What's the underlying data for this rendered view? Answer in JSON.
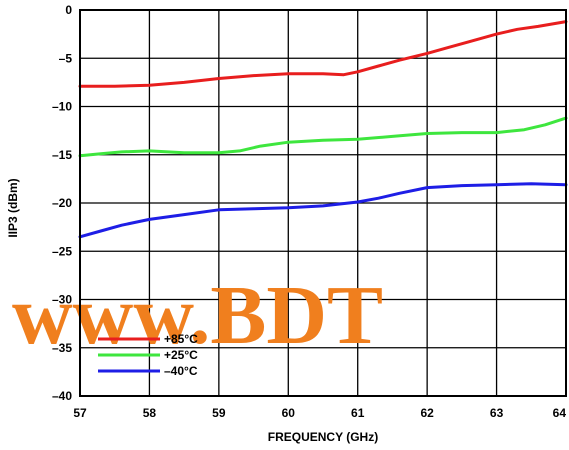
{
  "chart_data": {
    "type": "line",
    "xlabel": "FREQUENCY (GHz)",
    "ylabel": "IIP3 (dBm)",
    "xlim": [
      57,
      64
    ],
    "ylim": [
      -40,
      0
    ],
    "x_ticks": [
      "57",
      "58",
      "59",
      "60",
      "61",
      "62",
      "63",
      "64"
    ],
    "y_ticks": [
      "0",
      "–5",
      "–10",
      "–15",
      "–20",
      "–25",
      "–30",
      "–35",
      "–40"
    ],
    "grid": true,
    "legend_position": "bottom-left",
    "series": [
      {
        "name": "+85°C",
        "color": "#e81e1e",
        "points": [
          [
            57,
            -7.9
          ],
          [
            57.5,
            -7.9
          ],
          [
            58,
            -7.8
          ],
          [
            58.5,
            -7.5
          ],
          [
            59,
            -7.1
          ],
          [
            59.5,
            -6.8
          ],
          [
            60,
            -6.6
          ],
          [
            60.5,
            -6.6
          ],
          [
            60.8,
            -6.7
          ],
          [
            61,
            -6.4
          ],
          [
            61.3,
            -5.8
          ],
          [
            61.6,
            -5.2
          ],
          [
            62,
            -4.5
          ],
          [
            62.3,
            -3.9
          ],
          [
            62.6,
            -3.3
          ],
          [
            63,
            -2.5
          ],
          [
            63.3,
            -2.0
          ],
          [
            63.6,
            -1.7
          ],
          [
            64,
            -1.2
          ]
        ]
      },
      {
        "name": "+25°C",
        "color": "#3ee63e",
        "points": [
          [
            57,
            -15.1
          ],
          [
            57.3,
            -14.9
          ],
          [
            57.6,
            -14.7
          ],
          [
            58,
            -14.6
          ],
          [
            58.5,
            -14.8
          ],
          [
            59,
            -14.8
          ],
          [
            59.3,
            -14.6
          ],
          [
            59.6,
            -14.1
          ],
          [
            60,
            -13.7
          ],
          [
            60.5,
            -13.5
          ],
          [
            61,
            -13.4
          ],
          [
            61.5,
            -13.1
          ],
          [
            62,
            -12.8
          ],
          [
            62.5,
            -12.7
          ],
          [
            63,
            -12.7
          ],
          [
            63.4,
            -12.4
          ],
          [
            63.7,
            -11.9
          ],
          [
            64,
            -11.2
          ]
        ]
      },
      {
        "name": "–40°C",
        "color": "#1e1ee6",
        "points": [
          [
            57,
            -23.5
          ],
          [
            57.3,
            -22.9
          ],
          [
            57.6,
            -22.3
          ],
          [
            58,
            -21.7
          ],
          [
            58.5,
            -21.2
          ],
          [
            59,
            -20.7
          ],
          [
            59.5,
            -20.6
          ],
          [
            60,
            -20.5
          ],
          [
            60.5,
            -20.3
          ],
          [
            61,
            -19.9
          ],
          [
            61.3,
            -19.5
          ],
          [
            61.6,
            -19.0
          ],
          [
            62,
            -18.4
          ],
          [
            62.5,
            -18.2
          ],
          [
            63,
            -18.1
          ],
          [
            63.5,
            -18.0
          ],
          [
            64,
            -18.1
          ]
        ]
      }
    ]
  },
  "watermark": {
    "text": "www.BDT",
    "color": "#f07f1e"
  }
}
